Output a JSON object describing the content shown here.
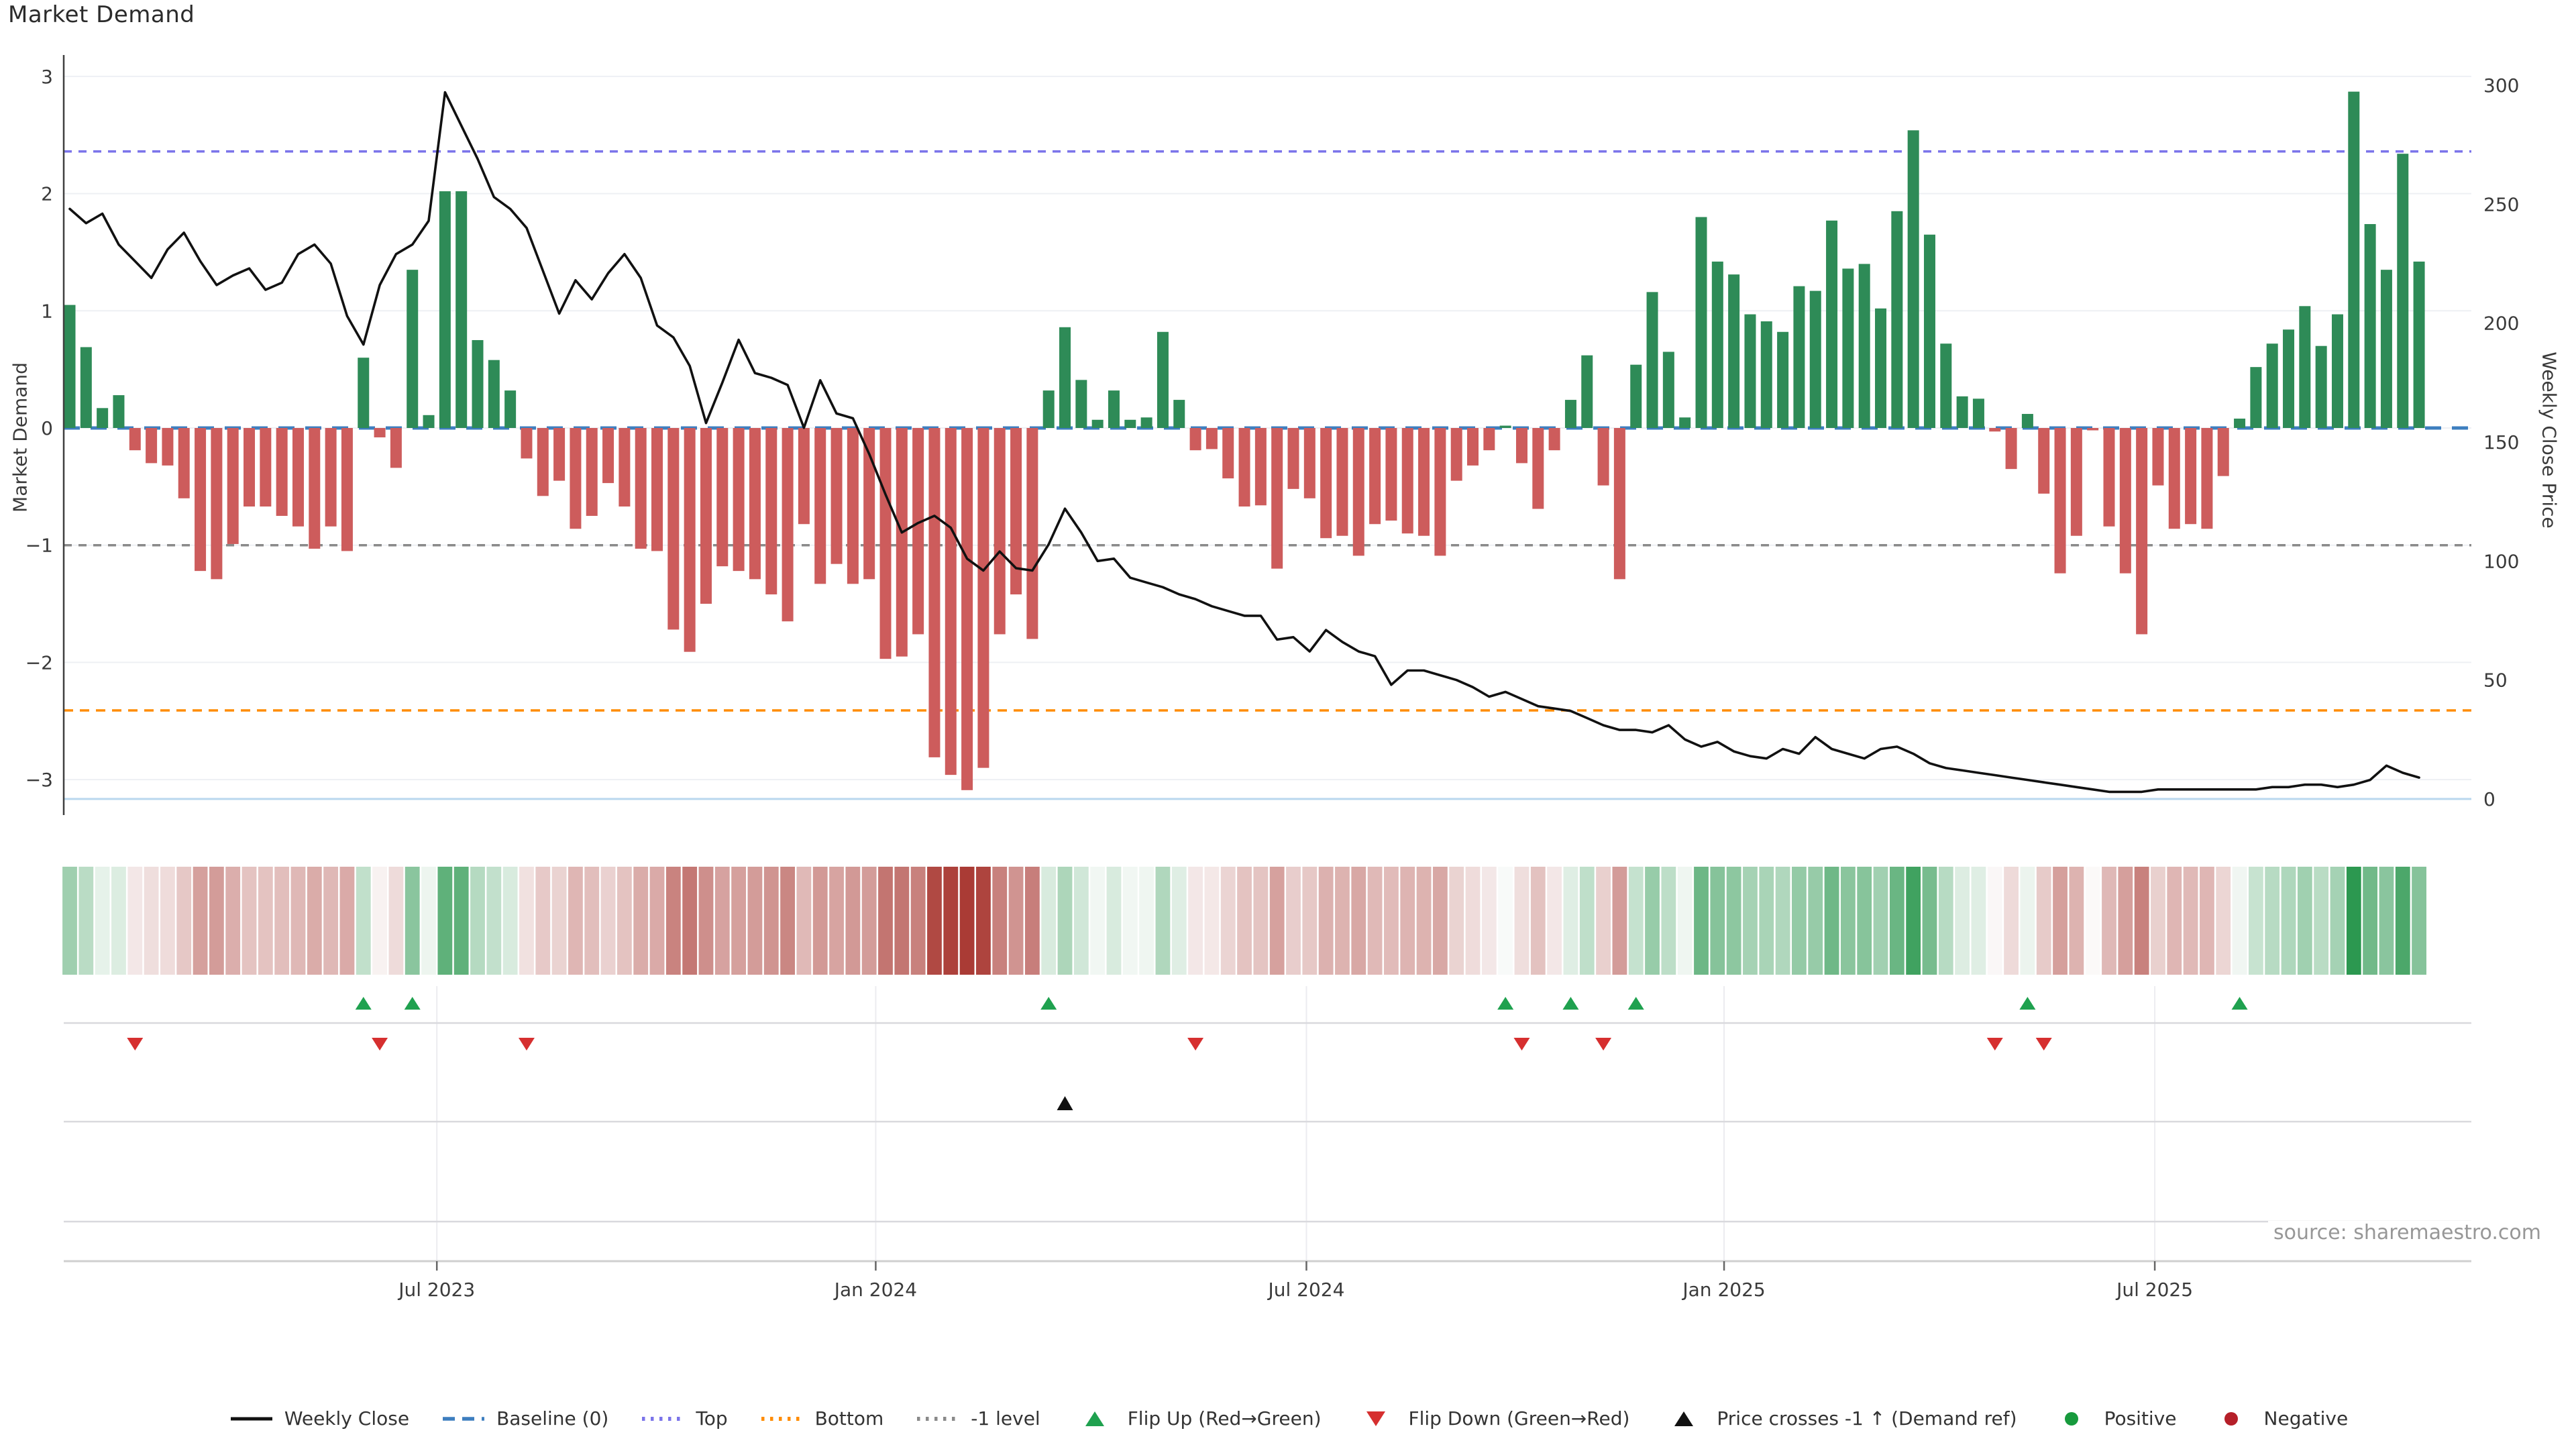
{
  "page": {
    "title": "Market Demand",
    "source": "source: sharemaestro.com",
    "background": "#ffffff"
  },
  "axes": {
    "left": {
      "label": "Market Demand",
      "ticks": [
        3,
        2,
        1,
        0,
        -1,
        -2,
        -3
      ]
    },
    "right": {
      "label": "Weekly Close Price",
      "ticks": [
        300,
        250,
        200,
        150,
        100,
        50,
        0
      ]
    },
    "x": {
      "labels": [
        "Jul 2023",
        "Jan 2024",
        "Jul 2024",
        "Jan 2025",
        "Jul 2025"
      ],
      "week_index": [
        22.5,
        49.4,
        75.8,
        101.4,
        127.8
      ]
    }
  },
  "chart_data": {
    "type": "bar+line",
    "title": "Market Demand",
    "xlabel": "",
    "ylabel_left": "Market Demand",
    "ylabel_right": "Weekly Close Price",
    "ylim_demand": [
      -3.3,
      3.14
    ],
    "ylim_price": [
      0,
      300
    ],
    "grid": "horizontal",
    "legend_position": "bottom-center",
    "n_weeks": 145,
    "demand": [
      1.05,
      0.69,
      0.17,
      0.28,
      -0.19,
      -0.3,
      -0.32,
      -0.6,
      -1.22,
      -1.29,
      -0.99,
      -0.67,
      -0.67,
      -0.75,
      -0.84,
      -1.03,
      -0.84,
      -1.05,
      0.6,
      -0.08,
      -0.34,
      1.35,
      0.11,
      2.02,
      2.02,
      0.75,
      0.58,
      0.32,
      -0.26,
      -0.58,
      -0.45,
      -0.86,
      -0.75,
      -0.47,
      -0.67,
      -1.03,
      -1.05,
      -1.72,
      -1.91,
      -1.5,
      -1.18,
      -1.22,
      -1.29,
      -1.42,
      -1.65,
      -0.82,
      -1.33,
      -1.16,
      -1.33,
      -1.29,
      -1.97,
      -1.95,
      -1.76,
      -2.81,
      -2.96,
      -3.09,
      -2.9,
      -1.76,
      -1.42,
      -1.8,
      0.32,
      0.86,
      0.41,
      0.07,
      0.32,
      0.07,
      0.09,
      0.82,
      0.24,
      -0.19,
      -0.18,
      -0.43,
      -0.67,
      -0.66,
      -1.2,
      -0.52,
      -0.6,
      -0.94,
      -0.92,
      -1.09,
      -0.82,
      -0.79,
      -0.9,
      -0.92,
      -1.09,
      -0.45,
      -0.32,
      -0.19,
      0.02,
      -0.3,
      -0.69,
      -0.19,
      0.24,
      0.62,
      -0.49,
      -1.29,
      0.54,
      1.16,
      0.65,
      0.09,
      1.8,
      1.42,
      1.31,
      0.97,
      0.91,
      0.82,
      1.21,
      1.17,
      1.77,
      1.36,
      1.4,
      1.02,
      1.85,
      2.54,
      1.65,
      0.72,
      0.27,
      0.25,
      -0.03,
      -0.35,
      0.12,
      -0.56,
      -1.24,
      -0.92,
      -0.02,
      -0.84,
      -1.24,
      -1.76,
      -0.49,
      -0.86,
      -0.82,
      -0.86,
      -0.41,
      0.08,
      0.52,
      0.72,
      0.84,
      1.04,
      0.7,
      0.97,
      2.87,
      1.74,
      1.35,
      2.34,
      1.42
    ],
    "price": [
      248,
      242,
      246,
      233,
      226,
      219,
      231,
      238,
      226,
      216,
      220,
      223,
      214,
      217,
      229,
      233,
      225,
      203,
      191,
      216,
      229,
      233,
      243,
      297,
      283,
      269,
      253,
      248,
      240,
      222,
      204,
      218,
      210,
      221,
      229,
      219,
      199,
      194,
      182,
      158,
      175,
      193,
      179,
      177,
      174,
      156,
      176,
      162,
      160,
      145,
      128,
      112,
      116,
      119,
      114,
      101,
      96,
      104,
      97,
      96,
      107,
      122,
      112,
      100,
      101,
      93,
      91,
      89,
      86,
      84,
      81,
      79,
      77,
      77,
      67,
      68,
      62,
      71,
      66,
      62,
      60,
      48,
      54,
      54,
      52,
      50,
      47,
      43,
      45,
      42,
      39,
      38,
      37,
      34,
      31,
      29,
      29,
      28,
      31,
      25,
      22,
      24,
      20,
      18,
      17,
      21,
      19,
      26,
      21,
      19,
      17,
      21,
      22,
      19,
      15,
      13,
      12,
      11,
      10,
      9,
      8,
      7,
      6,
      5,
      4,
      3,
      3,
      3,
      4,
      4,
      4,
      4,
      4,
      4,
      4,
      5,
      5,
      6,
      6,
      5,
      6,
      8,
      14,
      11,
      9
    ],
    "flip_up_weeks": [
      18,
      21,
      60,
      88,
      92,
      96,
      120,
      133
    ],
    "flip_down_weeks": [
      4,
      19,
      28,
      69,
      89,
      94,
      118,
      121
    ],
    "price_cross_weeks": [
      61
    ],
    "levels": {
      "top": 2.36,
      "baseline": 0,
      "minus1": -1,
      "bottom": -2.41
    },
    "colors": {
      "bar_positive": "#2e8b57",
      "bar_negative": "#cd5c5c",
      "price_line": "#111111",
      "top_line": "#7b74ea",
      "baseline_line": "#3d7ebf",
      "minus1_line": "#8a8a8a",
      "bottom_line": "#ff8c00",
      "price_zero_line": "#b9d7ee",
      "grid": "#eef0f4",
      "panel_grid": "#d9d9dd",
      "panel_vgrid": "#ececf0",
      "axis_line": "#cfcfcf",
      "tick_text": "#3a3a3a",
      "heat_green_end": "#1f9245",
      "heat_red_end": "#aa3a34",
      "flip_up": "#1fa14f",
      "flip_down": "#d62f2f",
      "price_cross": "#111111",
      "positive_dot": "#179a3d",
      "negative_dot": "#b51f29"
    }
  },
  "legend": {
    "items": [
      {
        "name": "weekly-close",
        "type": "line",
        "color": "#111111",
        "label": "Weekly Close"
      },
      {
        "name": "baseline",
        "type": "dash",
        "color": "#3d7ebf",
        "label": "Baseline (0)"
      },
      {
        "name": "top",
        "type": "dots",
        "color": "#7b74ea",
        "label": "Top"
      },
      {
        "name": "bottom",
        "type": "dots",
        "color": "#ff8c00",
        "label": "Bottom"
      },
      {
        "name": "minus1-level",
        "type": "dots",
        "color": "#8a8a8a",
        "label": "-1 level"
      },
      {
        "name": "flip-up",
        "type": "tri-up",
        "color": "#1fa14f",
        "label": "Flip Up (Red→Green)"
      },
      {
        "name": "flip-down",
        "type": "tri-down",
        "color": "#d62f2f",
        "label": "Flip Down (Green→Red)"
      },
      {
        "name": "price-cross",
        "type": "tri-up",
        "color": "#111111",
        "label": "Price crosses -1 ↑ (Demand ref)"
      },
      {
        "name": "positive",
        "type": "circle",
        "color": "#179a3d",
        "label": "Positive"
      },
      {
        "name": "negative",
        "type": "circle",
        "color": "#b51f29",
        "label": "Negative"
      }
    ]
  }
}
